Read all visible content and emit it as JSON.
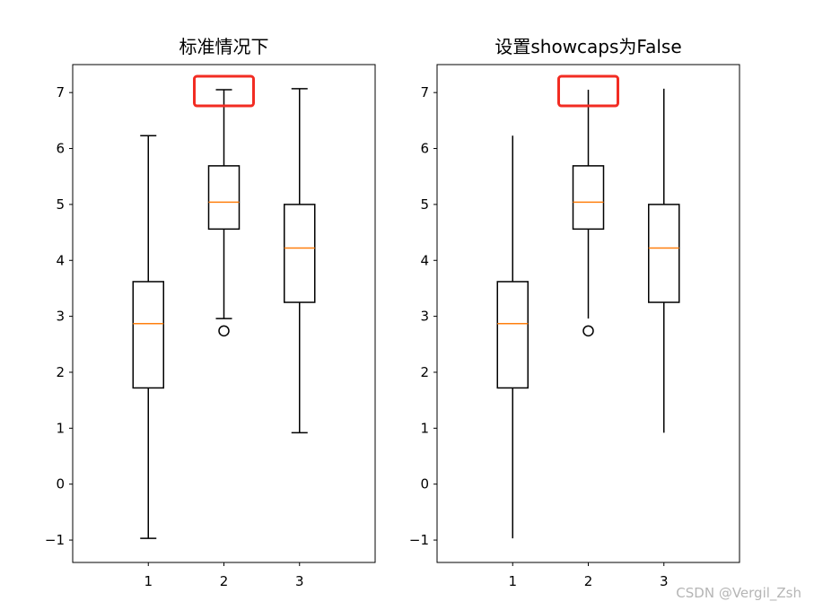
{
  "chart_data": [
    {
      "type": "box",
      "title": "标准情况下",
      "xlabel": "",
      "ylabel": "",
      "categories": [
        "1",
        "2",
        "3"
      ],
      "y_ticks": [
        "−1",
        "0",
        "1",
        "2",
        "3",
        "4",
        "5",
        "6",
        "7"
      ],
      "ylim": [
        -1.4,
        7.5
      ],
      "showcaps": true,
      "boxes": [
        {
          "label": "1",
          "whislo": -0.97,
          "q1": 1.72,
          "med": 2.87,
          "q3": 3.62,
          "whishi": 6.23,
          "fliers": []
        },
        {
          "label": "2",
          "whislo": 2.96,
          "q1": 4.56,
          "med": 5.04,
          "q3": 5.69,
          "whishi": 7.05,
          "fliers": [
            2.74
          ]
        },
        {
          "label": "3",
          "whislo": 0.92,
          "q1": 3.25,
          "med": 4.22,
          "q3": 5.0,
          "whishi": 7.07,
          "fliers": []
        }
      ],
      "highlight": {
        "box": 2,
        "at": 7.05,
        "color": "#f22c23"
      }
    },
    {
      "type": "box",
      "title": "设置showcaps为False",
      "xlabel": "",
      "ylabel": "",
      "categories": [
        "1",
        "2",
        "3"
      ],
      "y_ticks": [
        "−1",
        "0",
        "1",
        "2",
        "3",
        "4",
        "5",
        "6",
        "7"
      ],
      "ylim": [
        -1.4,
        7.5
      ],
      "showcaps": false,
      "boxes": [
        {
          "label": "1",
          "whislo": -0.97,
          "q1": 1.72,
          "med": 2.87,
          "q3": 3.62,
          "whishi": 6.23,
          "fliers": []
        },
        {
          "label": "2",
          "whislo": 2.96,
          "q1": 4.56,
          "med": 5.04,
          "q3": 5.69,
          "whishi": 7.05,
          "fliers": [
            2.74
          ]
        },
        {
          "label": "3",
          "whislo": 0.92,
          "q1": 3.25,
          "med": 4.22,
          "q3": 5.0,
          "whishi": 7.07,
          "fliers": []
        }
      ],
      "highlight": {
        "box": 2,
        "at": 7.05,
        "color": "#f22c23"
      }
    }
  ],
  "colors": {
    "median": "#ff7f0e",
    "box": "#000000",
    "highlight": "#f22c23",
    "watermark": "#b5b5b5"
  },
  "watermark": "CSDN @Vergil_Zsh"
}
